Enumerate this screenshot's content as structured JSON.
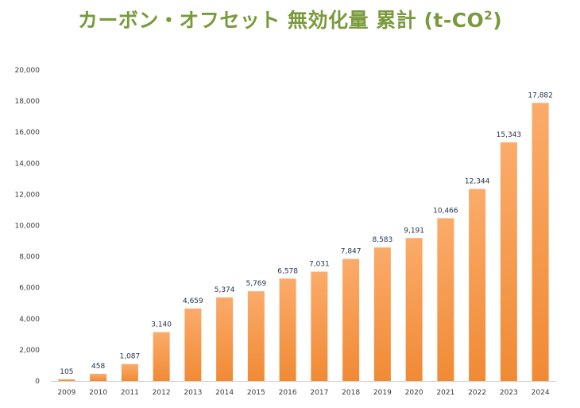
{
  "title": {
    "main": "カーボン・オフセット 無効化量 累計 (t-CO",
    "superscript": "2",
    "close": ")"
  },
  "colors": {
    "title": "#7a9a3c",
    "bar_top": "#fbab6a",
    "bar_bottom": "#f08a35",
    "axis": "#d0d0d0",
    "data_label": "#1f3050",
    "tick_label": "#3a3a3a"
  },
  "chart_data": {
    "type": "bar",
    "title": "カーボン・オフセット 無効化量 累計 (t-CO²)",
    "xlabel": "",
    "ylabel": "",
    "categories": [
      "2009",
      "2010",
      "2011",
      "2012",
      "2013",
      "2014",
      "2015",
      "2016",
      "2017",
      "2018",
      "2019",
      "2020",
      "2021",
      "2022",
      "2023",
      "2024"
    ],
    "values": [
      105,
      458,
      1087,
      3140,
      4659,
      5374,
      5769,
      6578,
      7031,
      7847,
      8583,
      9191,
      10466,
      12344,
      15343,
      17882
    ],
    "data_labels": [
      "105",
      "458",
      "1,087",
      "3,140",
      "4,659",
      "5,374",
      "5,769",
      "6,578",
      "7,031",
      "7,847",
      "8,583",
      "9,191",
      "10,466",
      "12,344",
      "15,343",
      "17,882"
    ],
    "ylim": [
      0,
      20000
    ],
    "yticks": [
      0,
      2000,
      4000,
      6000,
      8000,
      10000,
      12000,
      14000,
      16000,
      18000,
      20000
    ],
    "ytick_labels": [
      "0",
      "2,000",
      "4,000",
      "6,000",
      "8,000",
      "10,000",
      "12,000",
      "14,000",
      "16,000",
      "18,000",
      "20,000"
    ],
    "grid": false,
    "legend": "none"
  }
}
